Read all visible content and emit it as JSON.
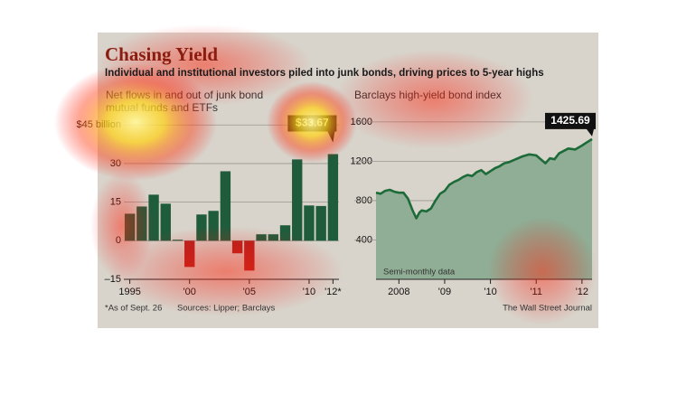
{
  "chart_data": [
    {
      "type": "bar",
      "title": "Chasing Yield",
      "subtitle": "Individual and institutional investors piled into junk bonds, driving prices to 5-year highs",
      "heading": "Net flows in and out of junk bond mutual funds and ETFs",
      "categories": [
        "1995",
        null,
        null,
        null,
        null,
        "'00",
        null,
        null,
        null,
        null,
        "'05",
        null,
        null,
        null,
        null,
        "'10",
        null,
        "'12*"
      ],
      "values": [
        10.5,
        13.3,
        17.9,
        14.4,
        0.4,
        -10.2,
        10.2,
        11.6,
        27,
        -4.9,
        -11.6,
        2.5,
        2.5,
        6,
        31.6,
        13.7,
        13.5,
        33.67
      ],
      "value_labels": [
        null,
        null,
        null,
        null,
        null,
        null,
        null,
        null,
        null,
        null,
        null,
        null,
        null,
        null,
        null,
        null,
        null,
        "$33.67"
      ],
      "colors": {
        "positive": "#1f5c3c",
        "negative": "#b3231f"
      },
      "ylim": [
        -15,
        50
      ],
      "yticks": [
        {
          "value": 45,
          "label": "$45 billion"
        },
        30,
        15,
        0,
        {
          "value": -15,
          "label": "–15"
        }
      ],
      "grid": true,
      "footnote": "*As of Sept. 26",
      "source": "Sources: Lipper; Barclays"
    },
    {
      "type": "area",
      "heading": "Barclays high-yield bond index",
      "x": [
        2008.0,
        2008.1,
        2008.2,
        2008.3,
        2008.4,
        2008.5,
        2008.6,
        2008.7,
        2008.8,
        2008.88,
        2008.95,
        2009.0,
        2009.1,
        2009.2,
        2009.3,
        2009.4,
        2009.5,
        2009.6,
        2009.7,
        2009.8,
        2009.9,
        2010.0,
        2010.1,
        2010.2,
        2010.3,
        2010.4,
        2010.5,
        2010.6,
        2010.7,
        2010.8,
        2010.9,
        2011.0,
        2011.2,
        2011.35,
        2011.5,
        2011.6,
        2011.7,
        2011.8,
        2011.9,
        2012.0,
        2012.2,
        2012.35,
        2012.5,
        2012.6,
        2012.72
      ],
      "values": [
        880,
        870,
        900,
        910,
        890,
        880,
        880,
        820,
        700,
        620,
        680,
        700,
        690,
        720,
        800,
        870,
        900,
        960,
        990,
        1010,
        1040,
        1060,
        1050,
        1090,
        1110,
        1070,
        1100,
        1130,
        1150,
        1180,
        1190,
        1210,
        1250,
        1270,
        1260,
        1220,
        1180,
        1230,
        1220,
        1280,
        1330,
        1320,
        1360,
        1390,
        1425.69
      ],
      "end_label": "1425.69",
      "line_color": "#1e6b3a",
      "fill_color": "#8fae95",
      "xlim": [
        2008.0,
        2012.72
      ],
      "xticks": [
        {
          "value": 2008.5,
          "label": "2008"
        },
        {
          "value": 2009.5,
          "label": "'09"
        },
        {
          "value": 2010.5,
          "label": "'10"
        },
        {
          "value": 2011.5,
          "label": "'11"
        },
        {
          "value": 2012.5,
          "label": "'12"
        }
      ],
      "ylim": [
        0,
        1700
      ],
      "yticks": [
        400,
        800,
        1200,
        1600
      ],
      "grid": true,
      "note": "Semi-monthly data",
      "credit": "The Wall Street Journal"
    }
  ]
}
